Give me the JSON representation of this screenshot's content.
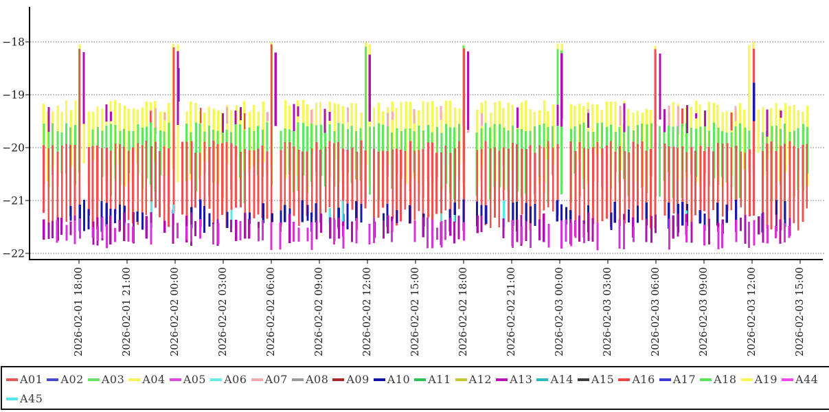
{
  "chart_data": {
    "type": "line",
    "title": "",
    "xlabel": "",
    "ylabel": "",
    "grid": "horizontal-dashed",
    "background": "#ffffff",
    "axis_color": "#000000",
    "grid_color": "#666666",
    "tick_text_color": "#1c1c1c",
    "y_axis": {
      "ticks": [
        {
          "label": "−18",
          "value": -18
        },
        {
          "label": "−19",
          "value": -19
        },
        {
          "label": "−20",
          "value": -20
        },
        {
          "label": "−21",
          "value": -21
        },
        {
          "label": "−22",
          "value": -22
        }
      ],
      "ylim": [
        -22.15,
        -17.35
      ]
    },
    "x_axis": {
      "tick_labels": [
        "2026-02-01 18:00",
        "2026-02-01 21:00",
        "2026-02-02 00:00",
        "2026-02-02 03:00",
        "2026-02-02 06:00",
        "2026-02-02 09:00",
        "2026-02-02 12:00",
        "2026-02-02 15:00",
        "2026-02-02 18:00",
        "2026-02-02 21:00",
        "2026-02-03 00:00",
        "2026-02-03 03:00",
        "2026-02-03 06:00",
        "2026-02-03 09:00",
        "2026-02-03 12:00",
        "2026-02-03 15:00"
      ],
      "tick_interval": "3 hours",
      "label_rotation_deg": -90
    },
    "legend": {
      "position": "bottom",
      "rows": [
        [
          "A01",
          "A02",
          "A03",
          "A04",
          "A05",
          "A06",
          "A07",
          "A08",
          "A09",
          "A10",
          "A11",
          "A12",
          "A13",
          "A14",
          "A15",
          "A16",
          "A17",
          "A18",
          "A19",
          "A44"
        ],
        [
          "A45"
        ]
      ],
      "entries": [
        {
          "label": "A01",
          "color": "#e85555"
        },
        {
          "label": "A02",
          "color": "#4a4ad0"
        },
        {
          "label": "A03",
          "color": "#6ae06a"
        },
        {
          "label": "A04",
          "color": "#f5f55a"
        },
        {
          "label": "A05",
          "color": "#e048e0"
        },
        {
          "label": "A06",
          "color": "#6ceaea"
        },
        {
          "label": "A07",
          "color": "#f0aab0"
        },
        {
          "label": "A08",
          "color": "#9a9a9a"
        },
        {
          "label": "A09",
          "color": "#a82828"
        },
        {
          "label": "A10",
          "color": "#1212a0"
        },
        {
          "label": "A11",
          "color": "#2ec25a"
        },
        {
          "label": "A12",
          "color": "#c6c630"
        },
        {
          "label": "A13",
          "color": "#b515b5"
        },
        {
          "label": "A14",
          "color": "#28b8c0"
        },
        {
          "label": "A15",
          "color": "#3c3c3c"
        },
        {
          "label": "A16",
          "color": "#ee4545"
        },
        {
          "label": "A17",
          "color": "#3c3cd4"
        },
        {
          "label": "A18",
          "color": "#55e555"
        },
        {
          "label": "A19",
          "color": "#f8f850"
        },
        {
          "label": "A44",
          "color": "#ee48ee"
        },
        {
          "label": "A45",
          "color": "#55e5ee"
        }
      ]
    },
    "series_summary": {
      "description": "21 overlapping high-frequency temperature-like traces oscillating between about -21.8 and -19.1, with synchronized upward spikes to about -18.05 every 6 hours (at 18:00, 00:00, 06:00, 12:00), each spike followed by a short quiet gap and a magenta/purple secondary spike to about -18.2 with a navy segment near -18.9.",
      "baseline_bands": {
        "yellow_top": [
          -19.35,
          -19.1
        ],
        "green_band": [
          -19.8,
          -19.5
        ],
        "red_band": [
          -21.5,
          -19.9
        ],
        "navy_bottom": [
          -21.55,
          -21.0
        ],
        "purple_magenta_bottom": [
          -21.9,
          -21.3
        ]
      },
      "spike_peak_value": -18.05,
      "spike_times": [
        "18:00",
        "00:00",
        "06:00",
        "12:00"
      ]
    },
    "spike_tick_indices": [
      0,
      2,
      4,
      6,
      8,
      10,
      12,
      14
    ],
    "render_groups": [
      {
        "name": "A04-A19-yellow",
        "color": "#f7f75c",
        "width": 3.4,
        "presence": 1,
        "top": -19.22,
        "top_jitter": 0.12,
        "bottom": -20.4,
        "bottom_jitter": 0.35,
        "spike": {
          "top": -18.04,
          "jitter": 0.04,
          "half_width": 4.6
        },
        "post_spike_gap": true
      },
      {
        "name": "A07-pink-upper",
        "color": "#f4aeb8",
        "width": 3,
        "presence": 0.13,
        "top": -19.3,
        "top_jitter": 0.1,
        "bottom": -19.62,
        "bottom_jitter": 0.15
      },
      {
        "name": "A16-red-upper",
        "color": "#e95050",
        "width": 2.6,
        "presence": 0.06,
        "top": -19.32,
        "top_jitter": 0.08,
        "bottom": -19.6,
        "bottom_jitter": 0.1
      },
      {
        "name": "A03-A11-A18-green",
        "color": "#5fe85f",
        "width": 3,
        "presence": 1,
        "top": -19.62,
        "top_jitter": 0.1,
        "bottom": -20.75,
        "bottom_jitter": 0.3,
        "spike": {
          "top": -18.16,
          "jitter": 0.1,
          "half_width": 3.2
        },
        "post_spike_gap": true
      },
      {
        "name": "A13-purple-upper",
        "color": "#b312b3",
        "width": 3,
        "presence": 0.08,
        "top": -19.26,
        "top_jitter": 0.1,
        "bottom": -19.6,
        "bottom_jitter": 0.2
      },
      {
        "name": "A01-A16-red",
        "color": "#f15050",
        "width": 2.8,
        "presence": 1,
        "top": -19.98,
        "top_jitter": 0.12,
        "bottom": -21.35,
        "bottom_jitter": 0.22,
        "spike": {
          "top": -18.1,
          "jitter": 0.06,
          "half_width": 2.6
        },
        "post_spike_gap": true
      },
      {
        "name": "A02-A10-A17-navy",
        "color": "#1818aa",
        "width": 3.2,
        "presence": 0.42,
        "top": -21.12,
        "top_jitter": 0.14,
        "bottom": -21.5,
        "bottom_jitter": 0.12,
        "spike_offset": {
          "top": -18.75,
          "jitter": 0.3,
          "d0": 2.5,
          "d1": 7,
          "length": 0.55
        }
      },
      {
        "name": "A06-A14-A45-cyan",
        "color": "#55e8e8",
        "width": 3.2,
        "presence": 0.05,
        "top": -21.15,
        "top_jitter": 0.15,
        "bottom": -21.5,
        "bottom_jitter": 0.1
      },
      {
        "name": "A13-purple-bottom",
        "color": "#ad10ad",
        "width": 3.2,
        "presence": 0.5,
        "top": -21.32,
        "top_jitter": 0.1,
        "bottom": -21.72,
        "bottom_jitter": 0.15,
        "spike_offset": {
          "top": -18.16,
          "jitter": 0.08,
          "d0": 2.5,
          "d1": 7.5,
          "length": 1.2
        }
      },
      {
        "name": "A05-A44-magenta",
        "color": "#d832d8",
        "width": 3,
        "presence": 0.34,
        "top": -21.42,
        "top_jitter": 0.1,
        "bottom": -21.82,
        "bottom_jitter": 0.12
      }
    ]
  }
}
